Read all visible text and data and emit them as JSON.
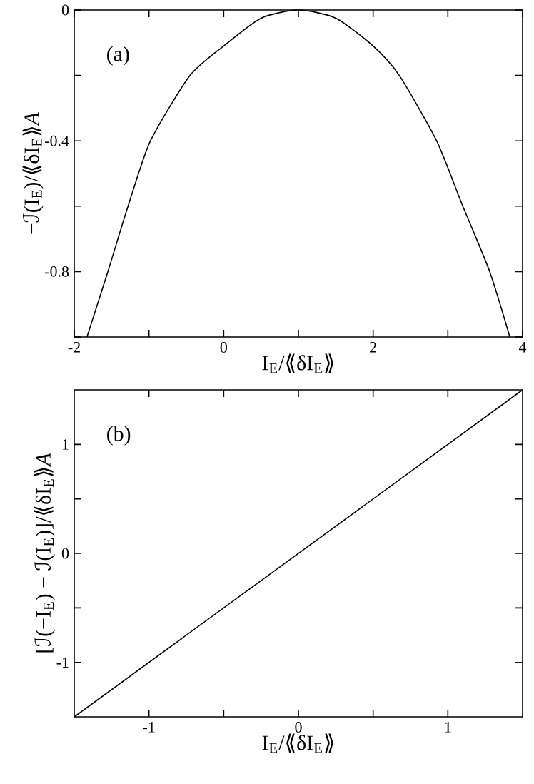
{
  "chart_data": [
    {
      "type": "line",
      "xlabel": "I$_{E}$/⟪δI$_{E}$⟫",
      "ylabel": "−ℐ(I$_{E}$)/⟪δI$_{E}$⟫*A*",
      "annotations": [
        "(a)"
      ],
      "xlim": [
        -2,
        4
      ],
      "ylim": [
        -1,
        0
      ],
      "xticks": [
        -2,
        {
          "value": -1,
          "label": null
        },
        0,
        {
          "value": 1,
          "label": null
        },
        2,
        {
          "value": 3,
          "label": null
        },
        4
      ],
      "yticks": [
        {
          "value": -1,
          "label": null
        },
        -0.8,
        {
          "value": -0.6,
          "label": null
        },
        -0.4,
        {
          "value": -0.2,
          "label": null
        },
        0
      ],
      "series": [
        {
          "color": "#000000",
          "x": [
            -1.83,
            -1.55,
            -1.28,
            -0.98,
            -0.45,
            0,
            0.5,
            1,
            1.5,
            2,
            2.35,
            2.85,
            3.2,
            3.56,
            3.83
          ],
          "values": [
            -1,
            -0.8,
            -0.6,
            -0.4,
            -0.2,
            -0.11,
            -0.025,
            0,
            -0.025,
            -0.11,
            -0.2,
            -0.4,
            -0.6,
            -0.8,
            -1
          ]
        }
      ]
    },
    {
      "type": "line",
      "xlabel": "I$_{E}$/⟪δI$_{E}$⟫",
      "ylabel": "[ℐ(−I$_{E}$) − ℐ(I$_{E}$)]/⟪δI$_{E}$⟫*A*",
      "annotations": [
        "(b)"
      ],
      "xlim": [
        -1.5,
        1.5
      ],
      "ylim": [
        -1.5,
        1.5
      ],
      "xticks": [
        -1,
        {
          "value": -0.5,
          "label": null
        },
        0,
        {
          "value": 0.5,
          "label": null
        },
        1
      ],
      "yticks": [
        -1,
        {
          "value": -0.5,
          "label": null
        },
        0,
        {
          "value": 0.5,
          "label": null
        },
        1
      ],
      "series": [
        {
          "color": "#000000",
          "x": [
            -1.5,
            1.5
          ],
          "values": [
            -1.5,
            1.5
          ]
        }
      ]
    }
  ]
}
